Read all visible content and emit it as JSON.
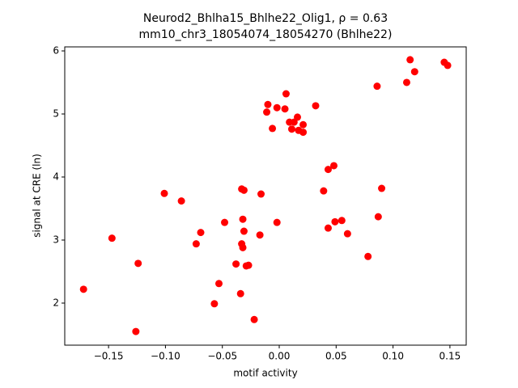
{
  "chart_data": {
    "type": "scatter",
    "title": "Neurod2_Bhlha15_Bhlhe22_Olig1, ρ = 0.63",
    "subtitle": "mm10_chr3_18054074_18054270 (Bhlhe22)",
    "x_label": "motif activity",
    "y_label": "signal at CRE (ln)",
    "color": "#ff0000",
    "x": [
      -0.172,
      -0.147,
      -0.124,
      -0.126,
      -0.101,
      -0.086,
      -0.073,
      -0.069,
      -0.057,
      -0.053,
      -0.048,
      -0.038,
      -0.034,
      -0.032,
      -0.033,
      -0.031,
      -0.033,
      -0.032,
      -0.031,
      -0.029,
      -0.027,
      -0.022,
      -0.017,
      -0.016,
      -0.002,
      -0.011,
      -0.01,
      -0.006,
      -0.002,
      0.005,
      0.006,
      0.009,
      0.011,
      0.013,
      0.016,
      0.017,
      0.021,
      0.021,
      0.032,
      0.039,
      0.043,
      0.048,
      0.043,
      0.049,
      0.055,
      0.06,
      0.078,
      0.086,
      0.087,
      0.09,
      0.112,
      0.115,
      0.119,
      0.145,
      0.148
    ],
    "values": [
      2.22,
      3.03,
      2.63,
      1.55,
      3.74,
      3.62,
      2.94,
      3.12,
      1.99,
      2.31,
      3.28,
      2.62,
      2.15,
      3.33,
      3.81,
      3.79,
      2.94,
      2.88,
      3.14,
      2.59,
      2.6,
      1.74,
      3.08,
      3.73,
      3.28,
      5.03,
      5.15,
      4.77,
      5.1,
      5.08,
      5.32,
      4.87,
      4.76,
      4.87,
      4.95,
      4.74,
      4.83,
      4.71,
      5.13,
      3.78,
      4.12,
      4.18,
      3.19,
      3.29,
      3.31,
      3.1,
      2.74,
      5.44,
      3.37,
      3.82,
      5.5,
      5.86,
      5.67,
      5.82,
      5.77
    ],
    "xlim": [
      -0.1885,
      0.1643
    ],
    "ylim": [
      1.333,
      6.064
    ],
    "xticks": [
      {
        "value": -0.15,
        "label": "−0.15"
      },
      {
        "value": -0.1,
        "label": "−0.10"
      },
      {
        "value": -0.05,
        "label": "−0.05"
      },
      {
        "value": 0,
        "label": "0.00"
      },
      {
        "value": 0.05,
        "label": "0.05"
      },
      {
        "value": 0.1,
        "label": "0.10"
      },
      {
        "value": 0.15,
        "label": "0.15"
      }
    ],
    "yticks": [
      2,
      3,
      4,
      5,
      6
    ]
  }
}
